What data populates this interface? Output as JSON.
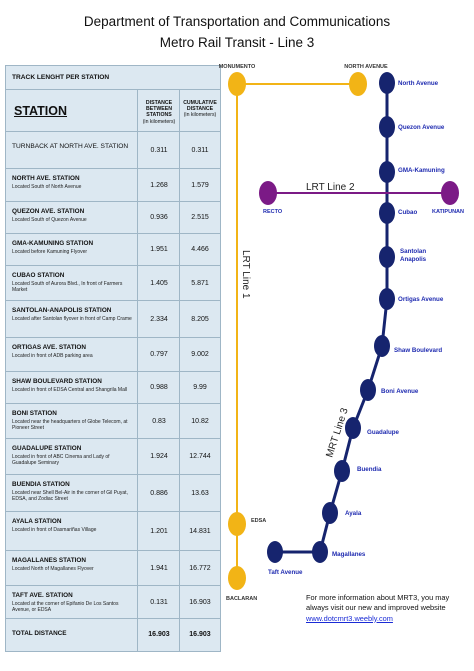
{
  "header": {
    "line1": "Department of Transportation and Communications",
    "line2": "Metro Rail Transit - Line 3"
  },
  "table": {
    "title": "TRACK LENGHT PER STATION",
    "station_header": "STATION",
    "col_distance": "DISTANCE BETWEEN STATIONS",
    "col_distance_unit": "(in kilometers)",
    "col_cumulative": "CUMULATIVE DISTANCE",
    "col_cumulative_unit": "(in kilometers)",
    "rows": [
      {
        "name": "TURNBACK AT NORTH AVE. STATION",
        "desc": "",
        "distance": "0.311",
        "cumulative": "0.311"
      },
      {
        "name": "NORTH AVE. STATION",
        "desc": "Located South of North Avenue",
        "distance": "1.268",
        "cumulative": "1.579"
      },
      {
        "name": "QUEZON AVE. STATION",
        "desc": "Located South of Quezon Avenue",
        "distance": "0.936",
        "cumulative": "2.515"
      },
      {
        "name": "GMA-KAMUNING STATION",
        "desc": "Located before Kamuning Flyover",
        "distance": "1.951",
        "cumulative": "4.466"
      },
      {
        "name": "CUBAO STATION",
        "desc": "Located South of Aurora Blvd., In front of Farmers Market",
        "distance": "1.405",
        "cumulative": "5.871"
      },
      {
        "name": "SANTOLAN-ANAPOLIS STATION",
        "desc": "Located after Santolan flyover in front of Camp Crame",
        "distance": "2.334",
        "cumulative": "8.205"
      },
      {
        "name": "ORTIGAS AVE. STATION",
        "desc": "Located in front of ADB parking area",
        "distance": "0.797",
        "cumulative": "9.002"
      },
      {
        "name": "SHAW BOULEVARD STATION",
        "desc": "Located in front of EDSA Central and Shangrila Mall",
        "distance": "0.988",
        "cumulative": "9.99"
      },
      {
        "name": "BONI STATION",
        "desc": "Located near the headquarters of Globe Telecom, at Pioneer Street",
        "distance": "0.83",
        "cumulative": "10.82"
      },
      {
        "name": "GUADALUPE STATION",
        "desc": "Located in front of ABC Cinema and Lady of Guadalupe Seminary",
        "distance": "1.924",
        "cumulative": "12.744"
      },
      {
        "name": "BUENDIA STATION",
        "desc": "Located near Shell Bel-Air in the corner of Gil Puyat, EDSA, and Zodiac Street",
        "distance": "0.886",
        "cumulative": "13.63"
      },
      {
        "name": "AYALA STATION",
        "desc": "Located in front of Dasmariñas Village",
        "distance": "1.201",
        "cumulative": "14.831"
      },
      {
        "name": "MAGALLANES STATION",
        "desc": "Located North of Magallanes Flyover",
        "distance": "1.941",
        "cumulative": "16.772"
      },
      {
        "name": "TAFT AVE. STATION",
        "desc": "Located at the corner of Epifanio De Los Santos Avenue, or EDSA",
        "distance": "0.131",
        "cumulative": "16.903"
      },
      {
        "name": "TOTAL DISTANCE",
        "desc": "",
        "distance": "16.903",
        "cumulative": "16.903"
      }
    ]
  },
  "map": {
    "lrt1_label": "LRT Line 1",
    "lrt2_label": "LRT Line 2",
    "mrt3_label": "MRT Line 3",
    "lrt1_stations": [
      "MONUMENTO",
      "EDSA",
      "BACLARAN"
    ],
    "lrt2_stations": [
      "RECTO",
      "KATIPUNAN"
    ],
    "mrt3_stations": [
      "North Avenue",
      "Quezon Avenue",
      "GMA-Kamuning",
      "Cubao",
      "Santolan Anapolis",
      "Ortigas Avenue",
      "Shaw Boulevard",
      "Boni Avenue",
      "Guadalupe",
      "Buendia",
      "Ayala",
      "Magallanes",
      "Taft Avenue"
    ],
    "north_avenue_junction": "NORTH AVENUE",
    "colors": {
      "lrt1": "#f2b416",
      "lrt2": "#7b1a86",
      "mrt3": "#16246e",
      "station_text": "#1f2bb0"
    }
  },
  "info": {
    "text": "For more information about MRT3, you may always visit our new and improved website",
    "link": "www.dotcmrt3.weebly.com"
  }
}
